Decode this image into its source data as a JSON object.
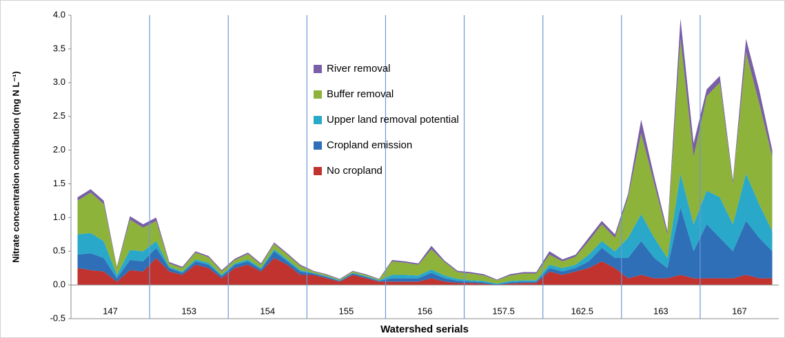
{
  "chart_data": {
    "type": "stacked_area",
    "y_label": "Nitrate concentration contribution (mg N L⁻¹)",
    "x_label": "Watershed serials",
    "categories": [
      null,
      null,
      null,
      "147",
      null,
      null,
      null,
      null,
      null,
      "153",
      null,
      null,
      null,
      null,
      null,
      "154",
      null,
      null,
      null,
      null,
      null,
      "155",
      null,
      null,
      null,
      null,
      null,
      "156",
      null,
      null,
      null,
      null,
      null,
      "157.5",
      null,
      null,
      null,
      null,
      null,
      "162.5",
      null,
      null,
      null,
      null,
      null,
      "163",
      null,
      null,
      null,
      null,
      null,
      "167",
      null,
      null
    ],
    "ylim": [
      -0.5,
      4.0
    ],
    "yticks": [
      -0.5,
      {
        "value": 0,
        "label": "0.0"
      },
      0.5,
      {
        "value": 1,
        "label": "1.0"
      },
      1.5,
      {
        "value": 2,
        "label": "2.0"
      },
      2.5,
      {
        "value": 3,
        "label": "3.0"
      },
      3.5,
      {
        "value": 4,
        "label": "4.0"
      }
    ],
    "series": [
      {
        "name": "No cropland",
        "color": "#c0332f",
        "values": [
          0.25,
          0.22,
          0.2,
          0.05,
          0.22,
          0.2,
          0.4,
          0.2,
          0.15,
          0.3,
          0.25,
          0.1,
          0.25,
          0.3,
          0.2,
          0.4,
          0.3,
          0.15,
          0.15,
          0.1,
          0.05,
          0.15,
          0.1,
          0.05,
          0.05,
          0.05,
          0.05,
          0.1,
          0.05,
          0.03,
          0.03,
          0.02,
          0.0,
          0.02,
          0.03,
          0.03,
          0.2,
          0.15,
          0.2,
          0.25,
          0.35,
          0.25,
          0.1,
          0.15,
          0.1,
          0.1,
          0.15,
          0.1,
          0.1,
          0.1,
          0.1,
          0.15,
          0.1,
          0.1
        ]
      },
      {
        "name": "Cropland emission",
        "color": "#2e6fb8",
        "values": [
          0.2,
          0.25,
          0.2,
          0.05,
          0.15,
          0.15,
          0.15,
          0.05,
          0.03,
          0.05,
          0.05,
          0.03,
          0.05,
          0.05,
          0.03,
          0.1,
          0.05,
          0.05,
          0.02,
          0.02,
          0.01,
          0.02,
          0.02,
          0.01,
          0.05,
          0.05,
          0.05,
          0.08,
          0.05,
          0.03,
          0.02,
          0.02,
          0.01,
          0.02,
          0.02,
          0.02,
          0.05,
          0.05,
          0.05,
          0.1,
          0.2,
          0.15,
          0.3,
          0.5,
          0.3,
          0.15,
          1.0,
          0.4,
          0.8,
          0.6,
          0.4,
          0.8,
          0.6,
          0.4
        ]
      },
      {
        "name": "Upper land removal potential",
        "color": "#2aa8c9",
        "values": [
          0.3,
          0.3,
          0.25,
          0.05,
          0.15,
          0.15,
          0.1,
          0.02,
          0.02,
          0.03,
          0.03,
          0.02,
          0.02,
          0.03,
          0.02,
          0.03,
          0.03,
          0.02,
          0.01,
          0.01,
          0.01,
          0.01,
          0.01,
          0.01,
          0.05,
          0.05,
          0.04,
          0.05,
          0.04,
          0.03,
          0.02,
          0.02,
          0.01,
          0.02,
          0.02,
          0.02,
          0.05,
          0.05,
          0.05,
          0.1,
          0.1,
          0.1,
          0.3,
          0.4,
          0.3,
          0.15,
          0.5,
          0.4,
          0.5,
          0.6,
          0.4,
          0.7,
          0.5,
          0.3
        ]
      },
      {
        "name": "Buffer removal",
        "color": "#8db33a",
        "values": [
          0.5,
          0.6,
          0.55,
          0.1,
          0.45,
          0.35,
          0.3,
          0.05,
          0.05,
          0.1,
          0.08,
          0.05,
          0.05,
          0.08,
          0.05,
          0.08,
          0.07,
          0.06,
          0.02,
          0.02,
          0.01,
          0.02,
          0.02,
          0.01,
          0.2,
          0.18,
          0.16,
          0.3,
          0.2,
          0.1,
          0.1,
          0.08,
          0.05,
          0.08,
          0.1,
          0.1,
          0.15,
          0.1,
          0.12,
          0.2,
          0.25,
          0.2,
          0.6,
          1.2,
          0.8,
          0.35,
          2.0,
          1.0,
          1.4,
          1.7,
          0.6,
          1.8,
          1.5,
          1.1
        ]
      },
      {
        "name": "River removal",
        "color": "#7a5ea8",
        "values": [
          0.05,
          0.05,
          0.05,
          0.02,
          0.05,
          0.05,
          0.05,
          0.02,
          0.02,
          0.02,
          0.02,
          0.02,
          0.02,
          0.02,
          0.02,
          0.02,
          0.02,
          0.02,
          0.01,
          0.01,
          0.01,
          0.01,
          0.01,
          0.01,
          0.02,
          0.02,
          0.02,
          0.05,
          0.02,
          0.02,
          0.02,
          0.02,
          0.01,
          0.02,
          0.02,
          0.02,
          0.05,
          0.03,
          0.03,
          0.05,
          0.05,
          0.05,
          0.05,
          0.2,
          0.1,
          0.05,
          0.3,
          0.2,
          0.1,
          0.1,
          0.05,
          0.2,
          0.2,
          0.1
        ]
      }
    ]
  }
}
